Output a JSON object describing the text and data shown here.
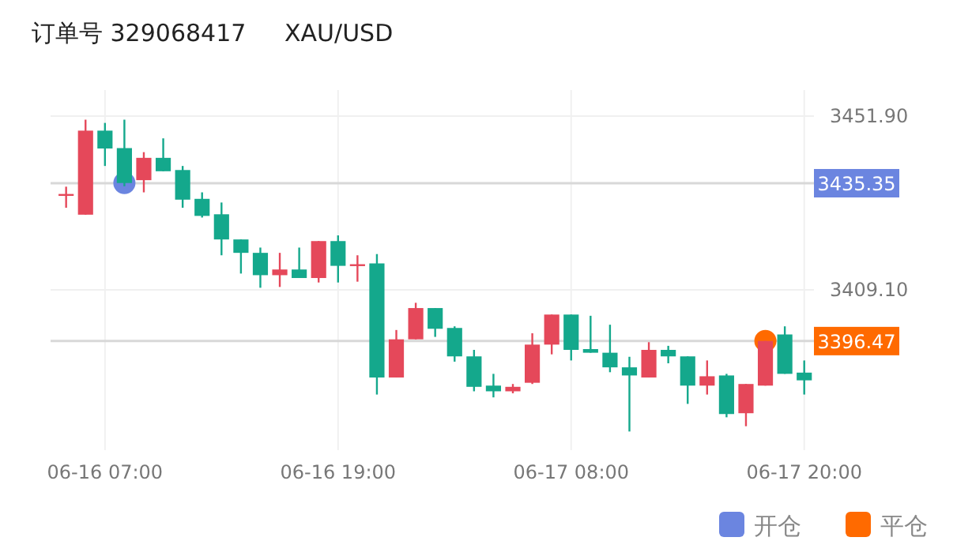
{
  "chart_data": {
    "type": "candlestick",
    "title": "订单号 329068417",
    "subtitle": "XAU/USD",
    "categories": [
      null,
      null,
      "06-16 07:00",
      null,
      null,
      null,
      null,
      null,
      null,
      null,
      null,
      null,
      null,
      null,
      "06-16 19:00",
      null,
      null,
      null,
      null,
      null,
      null,
      null,
      null,
      null,
      null,
      null,
      "06-17 08:00",
      null,
      null,
      null,
      null,
      null,
      null,
      null,
      null,
      null,
      null,
      null,
      "06-17 20:00"
    ],
    "ohlc": [
      [
        3432.6,
        3434.5,
        3429.3,
        3432.7
      ],
      [
        3427.6,
        3451.0,
        3427.6,
        3448.3
      ],
      [
        3448.3,
        3450.2,
        3439.6,
        3443.9
      ],
      [
        3444.0,
        3451.0,
        3434.6,
        3435.4
      ],
      [
        3436.1,
        3443.0,
        3433.1,
        3441.6
      ],
      [
        3441.6,
        3446.4,
        3438.3,
        3438.3
      ],
      [
        3438.6,
        3439.6,
        3429.3,
        3431.3
      ],
      [
        3431.5,
        3433.1,
        3426.9,
        3427.3
      ],
      [
        3427.7,
        3430.6,
        3417.6,
        3421.5
      ],
      [
        3421.5,
        3421.5,
        3413.1,
        3418.2
      ],
      [
        3418.2,
        3419.5,
        3409.6,
        3412.7
      ],
      [
        3412.7,
        3418.2,
        3409.8,
        3414.1
      ],
      [
        3414.1,
        3419.5,
        3412.0,
        3412.0
      ],
      [
        3412.0,
        3421.1,
        3410.9,
        3421.1
      ],
      [
        3421.1,
        3422.5,
        3410.9,
        3415.0
      ],
      [
        3415.3,
        3417.6,
        3411.1,
        3415.4
      ],
      [
        3415.6,
        3417.9,
        3383.3,
        3387.5
      ],
      [
        3387.5,
        3399.2,
        3387.5,
        3396.9
      ],
      [
        3396.9,
        3405.9,
        3396.9,
        3404.6
      ],
      [
        3404.6,
        3404.6,
        3397.5,
        3399.5
      ],
      [
        3399.7,
        3400.1,
        3391.4,
        3392.7
      ],
      [
        3392.7,
        3394.3,
        3384.1,
        3385.2
      ],
      [
        3385.5,
        3388.4,
        3382.6,
        3384.1
      ],
      [
        3384.1,
        3385.9,
        3383.6,
        3385.2
      ],
      [
        3386.2,
        3398.4,
        3385.9,
        3395.6
      ],
      [
        3395.6,
        3403.0,
        3393.2,
        3403.0
      ],
      [
        3403.0,
        3403.0,
        3391.7,
        3394.3
      ],
      [
        3394.5,
        3402.7,
        3393.6,
        3393.6
      ],
      [
        3393.6,
        3400.5,
        3388.8,
        3390.0
      ],
      [
        3390.0,
        3392.6,
        3374.2,
        3388.0
      ],
      [
        3387.5,
        3396.2,
        3387.5,
        3394.3
      ],
      [
        3394.3,
        3395.3,
        3391.0,
        3392.7
      ],
      [
        3392.7,
        3392.7,
        3381.0,
        3385.5
      ],
      [
        3385.5,
        3391.7,
        3383.3,
        3387.8
      ],
      [
        3388.0,
        3388.4,
        3377.7,
        3378.5
      ],
      [
        3378.7,
        3385.9,
        3375.5,
        3385.9
      ],
      [
        3385.5,
        3396.5,
        3385.5,
        3396.5
      ],
      [
        3398.1,
        3400.1,
        3388.4,
        3388.4
      ],
      [
        3388.7,
        3391.7,
        3383.3,
        3386.8
      ]
    ],
    "colors": [
      "#e5485a",
      "#e5485a",
      "#14a88c",
      "#14a88c",
      "#e5485a",
      "#14a88c",
      "#14a88c",
      "#14a88c",
      "#14a88c",
      "#14a88c",
      "#14a88c",
      "#e5485a",
      "#14a88c",
      "#e5485a",
      "#14a88c",
      "#e5485a",
      "#14a88c",
      "#e5485a",
      "#e5485a",
      "#14a88c",
      "#14a88c",
      "#14a88c",
      "#14a88c",
      "#e5485a",
      "#e5485a",
      "#e5485a",
      "#14a88c",
      "#14a88c",
      "#14a88c",
      "#14a88c",
      "#e5485a",
      "#14a88c",
      "#14a88c",
      "#e5485a",
      "#14a88c",
      "#e5485a",
      "#e5485a",
      "#14a88c",
      "#14a88c"
    ],
    "series": [
      {
        "type": "scatter",
        "name": "开仓",
        "color": "#6b85e0",
        "values": [
          null,
          null,
          null,
          3435.4,
          null,
          null,
          null,
          null,
          null,
          null,
          null,
          null,
          null,
          null,
          null,
          null,
          null,
          null,
          null,
          null,
          null,
          null,
          null,
          null,
          null,
          null,
          null,
          null,
          null,
          null,
          null,
          null,
          null,
          null,
          null,
          null,
          null,
          null,
          null
        ]
      },
      {
        "type": "scatter",
        "name": "平仓",
        "color": "#ff6a00",
        "values": [
          null,
          null,
          null,
          null,
          null,
          null,
          null,
          null,
          null,
          null,
          null,
          null,
          null,
          null,
          null,
          null,
          null,
          null,
          null,
          null,
          null,
          null,
          null,
          null,
          null,
          null,
          null,
          null,
          null,
          null,
          null,
          null,
          null,
          null,
          null,
          null,
          3396.5,
          null,
          null
        ]
      }
    ],
    "ref_lines": [
      {
        "axis": "y",
        "value": 3435.35,
        "label": "3435.35"
      },
      {
        "axis": "y",
        "value": 3396.47,
        "label": "3396.47"
      }
    ],
    "ylim": [
      3369.6,
      3458.3
    ],
    "yticks": [
      {
        "value": 3451.9,
        "label": "3451.90"
      },
      {
        "value": 3409.1,
        "label": "3409.10"
      }
    ],
    "grid": true,
    "legend": "bottom right",
    "marker": "circle"
  }
}
